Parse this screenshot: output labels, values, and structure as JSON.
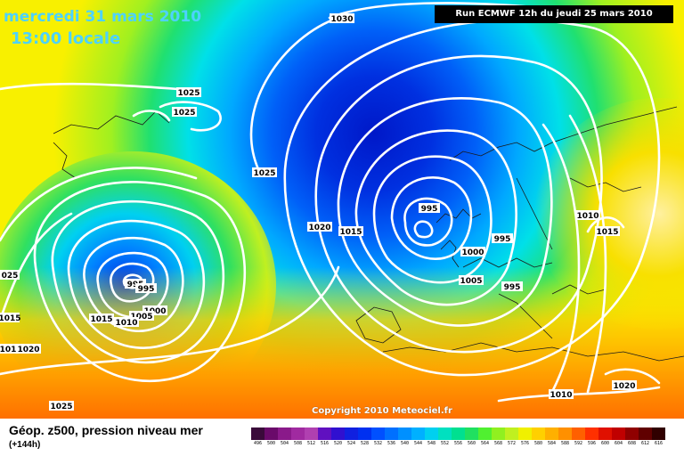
{
  "header": {
    "date": "mercredi 31 mars 2010",
    "time": "13:00",
    "time_suffix": "locale",
    "run_info": "Run ECMWF 12h du jeudi 25 mars 2010"
  },
  "copyright": "Copyright 2010 Meteociel.fr",
  "legend": {
    "title": "Géop. z500, pression niveau mer",
    "subtitle": "(+144h)",
    "scale_values": [
      "496",
      "500",
      "504",
      "508",
      "512",
      "516",
      "520",
      "524",
      "528",
      "532",
      "536",
      "540",
      "544",
      "548",
      "552",
      "556",
      "560",
      "564",
      "568",
      "572",
      "576",
      "580",
      "584",
      "588",
      "592",
      "596",
      "600",
      "604",
      "608",
      "612",
      "616"
    ],
    "scale_colors": [
      "#3a0a3a",
      "#6a0a6a",
      "#8a1a8a",
      "#a02aa0",
      "#b040b0",
      "#6010c0",
      "#3010d0",
      "#1020e0",
      "#0030f0",
      "#0050ff",
      "#0070ff",
      "#0090ff",
      "#00b0ff",
      "#00d0f0",
      "#00e0c0",
      "#00e090",
      "#20e060",
      "#50f030",
      "#90f020",
      "#c0f020",
      "#f0f000",
      "#ffd000",
      "#ffb000",
      "#ff9000",
      "#ff6000",
      "#ff3000",
      "#e01000",
      "#c00000",
      "#900000",
      "#600000",
      "#300000"
    ]
  },
  "isobar_labels": [
    "1030",
    "1025",
    "1025",
    "1025",
    "1020",
    "1015",
    "995",
    "995",
    "1000",
    "1005",
    "995",
    "1010",
    "1015",
    "995",
    "995",
    "1000",
    "1005",
    "1010",
    "1015",
    "1020",
    "1025",
    "1010",
    "1020",
    "025",
    "1015",
    "101"
  ]
}
